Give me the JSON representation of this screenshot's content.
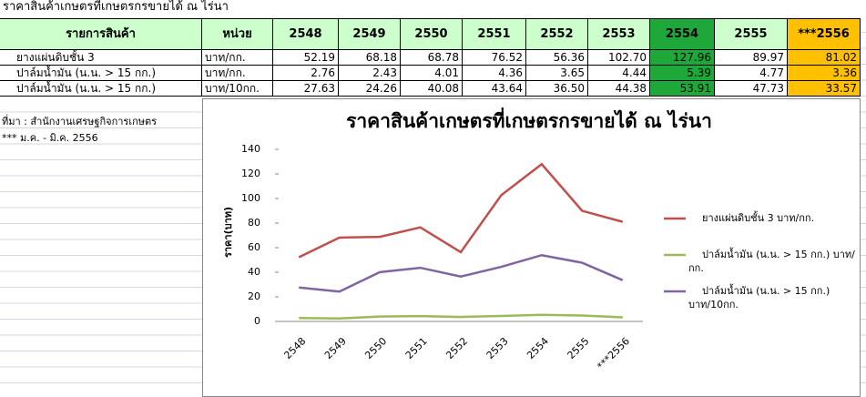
{
  "sheet": {
    "title": "ราคาสินค้าเกษตรที่เกษตรกรขายได้ ณ ไร่นา",
    "table": {
      "header": [
        "รายการสินค้า",
        "หน่วย",
        "2548",
        "2549",
        "2550",
        "2551",
        "2552",
        "2553",
        "2554",
        "2555",
        "***2556"
      ],
      "rows": [
        [
          "ยางแผ่นดิบชั้น 3",
          "บาท/กก.",
          "52.19",
          "68.18",
          "68.78",
          "76.52",
          "56.36",
          "102.70",
          "127.96",
          "89.97",
          "81.02"
        ],
        [
          "ปาล์มน้ำมัน (น.น. > 15 กก.)",
          "บาท/กก.",
          "2.76",
          "2.43",
          "4.01",
          "4.36",
          "3.65",
          "4.44",
          "5.39",
          "4.77",
          "3.36"
        ],
        [
          "ปาล์มน้ำมัน (น.น. > 15 กก.)",
          "บาท/10กก.",
          "27.63",
          "24.26",
          "40.08",
          "43.64",
          "36.50",
          "44.38",
          "53.91",
          "47.73",
          "33.57"
        ]
      ]
    },
    "notes": [
      "ที่มา : สำนักงานเศรษฐกิจการเกษตร",
      "*** ม.ค. - มิ.ค. 2556"
    ]
  },
  "chart_data": {
    "type": "line",
    "title": "ราคาสินค้าเกษตรที่เกษตรกรขายได้ ณ ไร่นา",
    "y_label": "ราคา(บาท)",
    "categories": [
      "2548",
      "2549",
      "2550",
      "2551",
      "2552",
      "2553",
      "2554",
      "2555",
      "***2556"
    ],
    "series": [
      {
        "name": "ยางแผ่นดิบชั้น 3 บาท/กก.",
        "color": "#c0504d",
        "values": [
          52.19,
          68.18,
          68.78,
          76.52,
          56.36,
          102.7,
          127.96,
          89.97,
          81.02
        ]
      },
      {
        "name": "ปาล์มน้ำมัน (น.น. > 15 กก.) บาท/กก.",
        "color": "#9bbb59",
        "values": [
          2.76,
          2.43,
          4.01,
          4.36,
          3.65,
          4.44,
          5.39,
          4.77,
          3.36
        ]
      },
      {
        "name": "ปาล์มน้ำมัน (น.น. > 15 กก.) บาท/10กก.",
        "color": "#8064a2",
        "values": [
          27.63,
          24.26,
          40.08,
          43.64,
          36.5,
          44.38,
          53.91,
          47.73,
          33.57
        ]
      }
    ],
    "ylim": [
      0,
      140
    ],
    "yticks": [
      0,
      20,
      40,
      60,
      80,
      100,
      120,
      140
    ],
    "legend": "right"
  }
}
